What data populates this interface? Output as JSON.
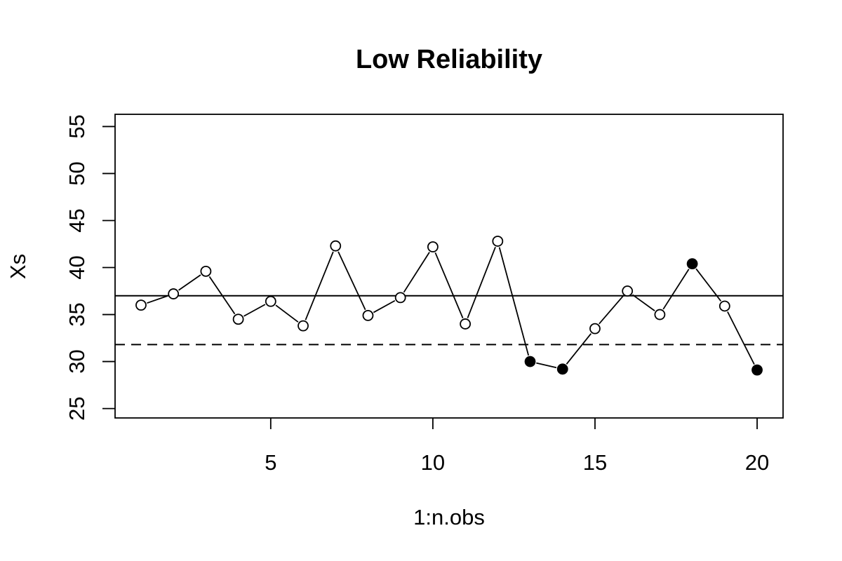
{
  "chart_data": {
    "type": "line",
    "title": "Low Reliability",
    "xlabel": "1:n.obs",
    "ylabel": "Xs",
    "xlim": [
      0.2,
      20.8
    ],
    "ylim": [
      24,
      56.3
    ],
    "x_ticks": [
      5,
      10,
      15,
      20
    ],
    "y_ticks": [
      25,
      30,
      35,
      40,
      45,
      50,
      55
    ],
    "grid": false,
    "series": [
      {
        "x": [
          1,
          2,
          3,
          4,
          5,
          6,
          7,
          8,
          9,
          10,
          11,
          12,
          13,
          14,
          15,
          16,
          17,
          18,
          19,
          20
        ],
        "values": [
          36.0,
          37.2,
          39.6,
          34.5,
          36.4,
          33.8,
          42.3,
          34.9,
          36.8,
          42.2,
          34.0,
          42.8,
          30.0,
          29.2,
          33.5,
          37.5,
          35.0,
          40.4,
          35.9,
          29.1
        ],
        "filled": [
          false,
          false,
          false,
          false,
          false,
          false,
          false,
          false,
          false,
          false,
          false,
          false,
          true,
          true,
          false,
          false,
          false,
          true,
          false,
          true
        ]
      }
    ],
    "reference_lines": [
      {
        "style": "solid",
        "y": 37.0
      },
      {
        "style": "dashed",
        "y": 31.8
      }
    ],
    "colors": {
      "line": "#000000",
      "point_fill": "#000000",
      "background": "#ffffff"
    }
  }
}
